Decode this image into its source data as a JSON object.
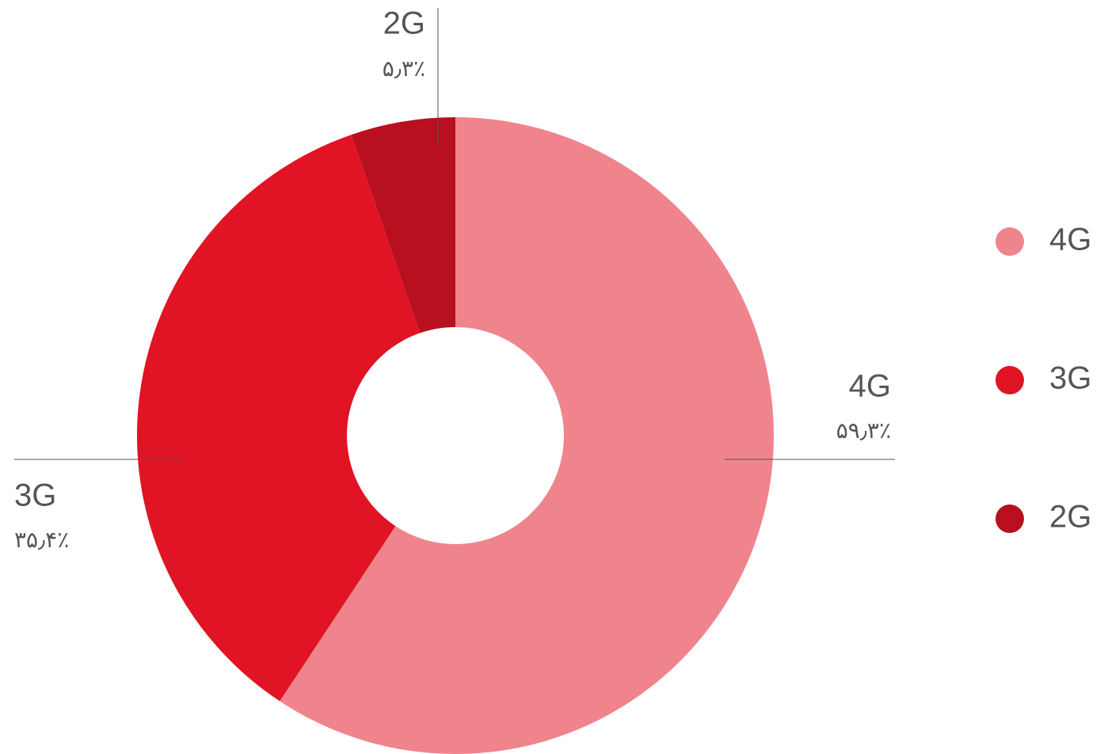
{
  "chart_data": {
    "type": "donut",
    "categories": [
      "4G",
      "3G",
      "2G"
    ],
    "values": [
      59.3,
      35.4,
      5.3
    ],
    "value_labels": [
      "۵۹٫۳٪",
      "۳۵٫۴٪",
      "۵٫۳٪"
    ],
    "colors": [
      "#f0848c",
      "#e01424",
      "#b8101e"
    ],
    "legend": "right"
  }
}
